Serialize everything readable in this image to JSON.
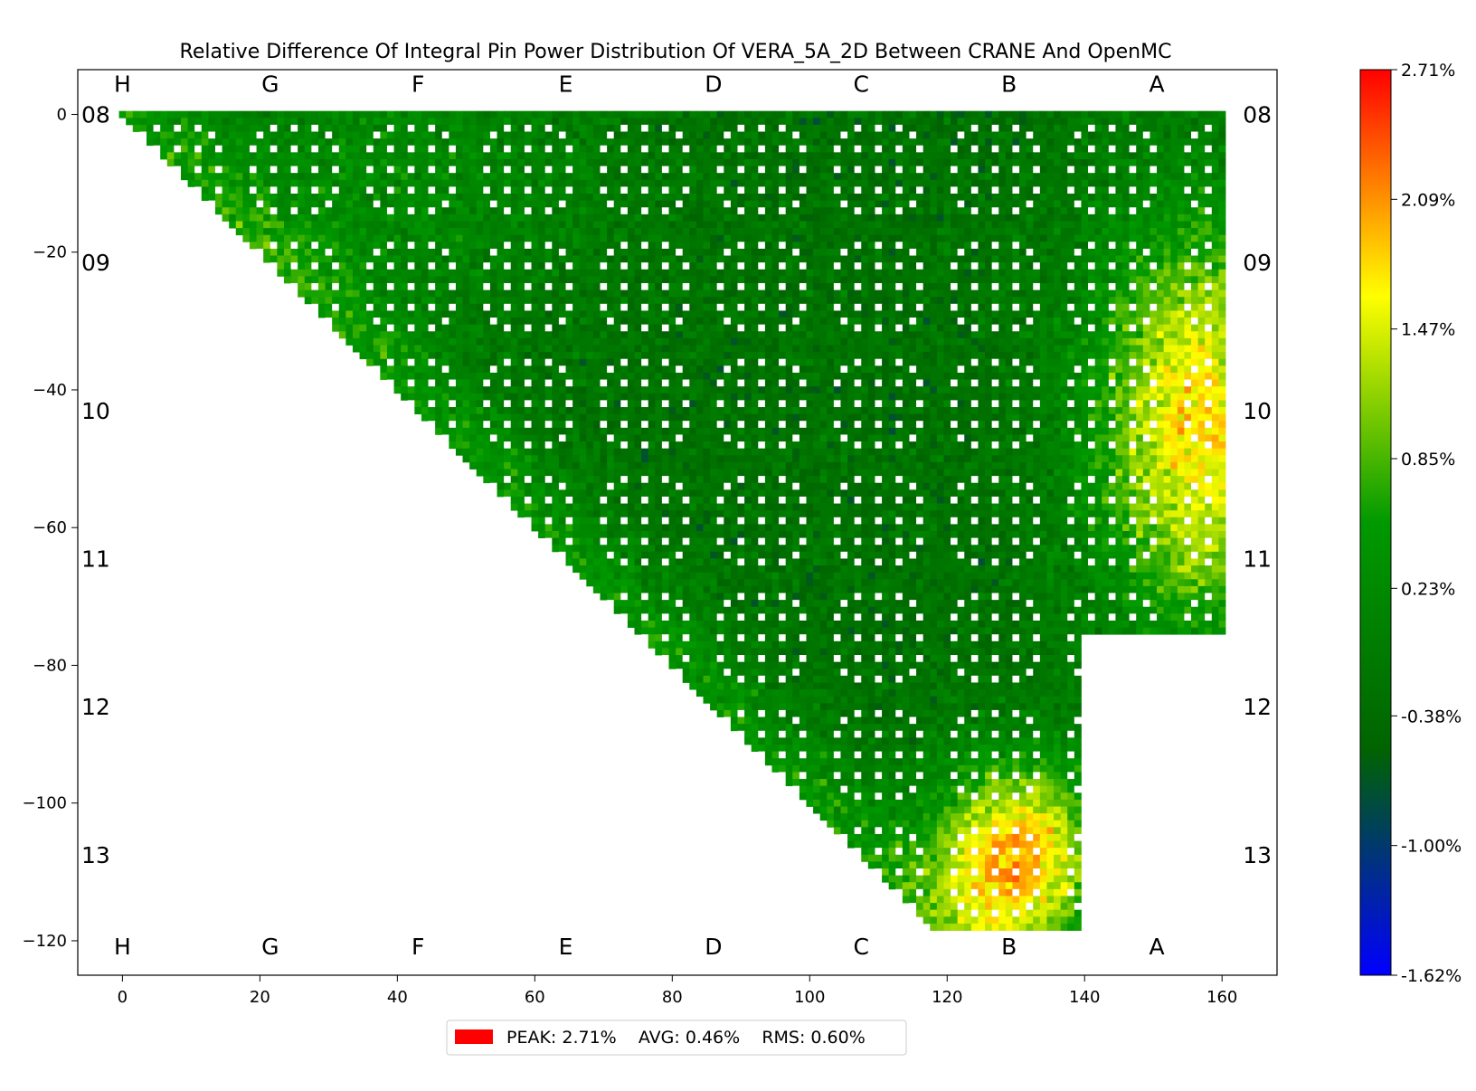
{
  "chart_data": {
    "type": "heatmap",
    "title": "Relative Difference Of Integral Pin Power Distribution Of VERA_5A_2D Between CRANE And OpenMC",
    "xlabel": "",
    "ylabel": "",
    "xlim": [
      -6.5,
      168
    ],
    "ylim": [
      -125,
      6.5
    ],
    "x_ticks": [
      0,
      20,
      40,
      60,
      80,
      100,
      120,
      140,
      160
    ],
    "y_ticks": [
      0,
      -20,
      -40,
      -60,
      -80,
      -100,
      -120
    ],
    "grid": false,
    "assembly_columns": {
      "labels": [
        "H",
        "G",
        "F",
        "E",
        "D",
        "C",
        "B",
        "A"
      ],
      "x": [
        0,
        21.5,
        43,
        64.5,
        86,
        107.5,
        129,
        150.5
      ]
    },
    "assembly_rows": {
      "labels": [
        "08",
        "09",
        "10",
        "11",
        "12",
        "13"
      ],
      "y": [
        0,
        -21.5,
        -43,
        -64.5,
        -86,
        -107.5
      ]
    },
    "pin_grid": {
      "rows": 119,
      "cols": 161,
      "shape": "lower triangle: cells with column index >= row index; columns up to 161 for rows 0–75, up to 140 for rows 76–118",
      "guide_tube_positions_in_assembly": [
        [
          2,
          5
        ],
        [
          2,
          8
        ],
        [
          2,
          11
        ],
        [
          3,
          3
        ],
        [
          3,
          13
        ],
        [
          5,
          2
        ],
        [
          5,
          5
        ],
        [
          5,
          8
        ],
        [
          5,
          11
        ],
        [
          5,
          14
        ],
        [
          8,
          2
        ],
        [
          8,
          5
        ],
        [
          8,
          8
        ],
        [
          8,
          11
        ],
        [
          8,
          14
        ],
        [
          11,
          2
        ],
        [
          11,
          5
        ],
        [
          11,
          8
        ],
        [
          11,
          11
        ],
        [
          11,
          14
        ],
        [
          13,
          3
        ],
        [
          13,
          13
        ],
        [
          14,
          5
        ],
        [
          14,
          8
        ],
        [
          14,
          11
        ]
      ],
      "assembly_pitch_pins": 17,
      "assembly_gap_pins": 4.5,
      "regional_levels_percent": [
        {
          "region": "A column, rows 09–11",
          "value": 1.7
        },
        {
          "region": "B column, row 13",
          "value": 2.0
        },
        {
          "region": "core interior",
          "value": -0.2
        },
        {
          "region": "diagonal edge",
          "value": 0.5
        }
      ]
    },
    "colorbar": {
      "min": -1.62,
      "max": 2.71,
      "tick_labels": [
        "2.71%",
        "2.09%",
        "1.47%",
        "0.85%",
        "0.23%",
        "-0.38%",
        "-1.00%",
        "-1.62%"
      ],
      "tick_values": [
        2.71,
        2.09,
        1.47,
        0.85,
        0.23,
        -0.38,
        -1.0,
        -1.62
      ],
      "colors": [
        "#0000ff",
        "#006400",
        "#009900",
        "#ffff00",
        "#ff0000"
      ]
    },
    "legend": {
      "placement": "bottom-center",
      "swatch_color": "#ff0000",
      "text": "PEAK: 2.71%    AVG: 0.46%    RMS: 0.60%"
    }
  }
}
